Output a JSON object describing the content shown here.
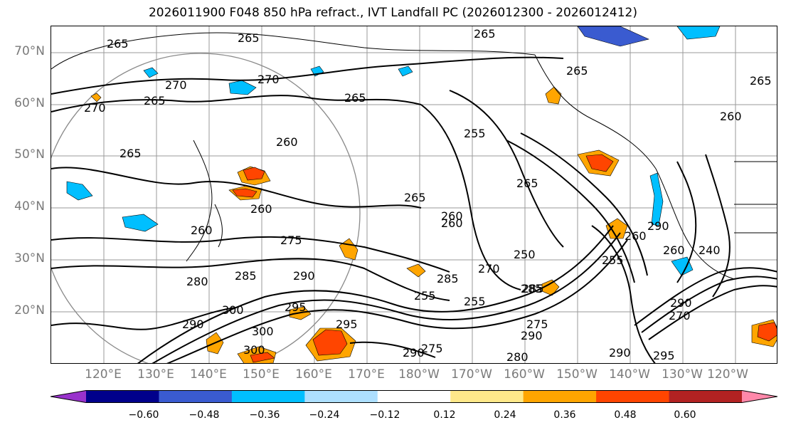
{
  "title": "2026011900 F048 850 hPa refract., IVT Landfall PC (2026012300 - 2026012412)",
  "lat_labels": [
    "70°N",
    "60°N",
    "50°N",
    "40°N",
    "30°N",
    "20°N"
  ],
  "lon_labels": [
    "120°E",
    "130°E",
    "140°E",
    "150°E",
    "160°E",
    "170°E",
    "180°W",
    "170°W",
    "160°W",
    "150°W",
    "140°W",
    "130°W",
    "120°W"
  ],
  "colorbar": {
    "colors": [
      "#9932CC",
      "#00008B",
      "#3A5BD0",
      "#00BFFF",
      "#ADDFFF",
      "#FFFFFF",
      "#FFE88A",
      "#FFA500",
      "#FF4500",
      "#B22222",
      "#FF88AA"
    ],
    "ticks": [
      "−0.60",
      "−0.48",
      "−0.36",
      "−0.24",
      "−0.12",
      "0.12",
      "0.24",
      "0.36",
      "0.48",
      "0.60"
    ]
  },
  "contour_labels": [
    "265",
    "265",
    "265",
    "270",
    "270",
    "270",
    "265",
    "265",
    "260",
    "265",
    "265",
    "260",
    "260",
    "265",
    "260",
    "260",
    "275",
    "285",
    "290",
    "280",
    "300",
    "295",
    "300",
    "290",
    "300",
    "255",
    "265",
    "255",
    "260",
    "250",
    "270",
    "285",
    "285",
    "280",
    "290",
    "275",
    "290",
    "295",
    "260",
    "255",
    "290",
    "240",
    "290",
    "275",
    "270",
    "290",
    "285",
    "295",
    "255",
    "265",
    "260"
  ],
  "contour_label_note": ""
}
